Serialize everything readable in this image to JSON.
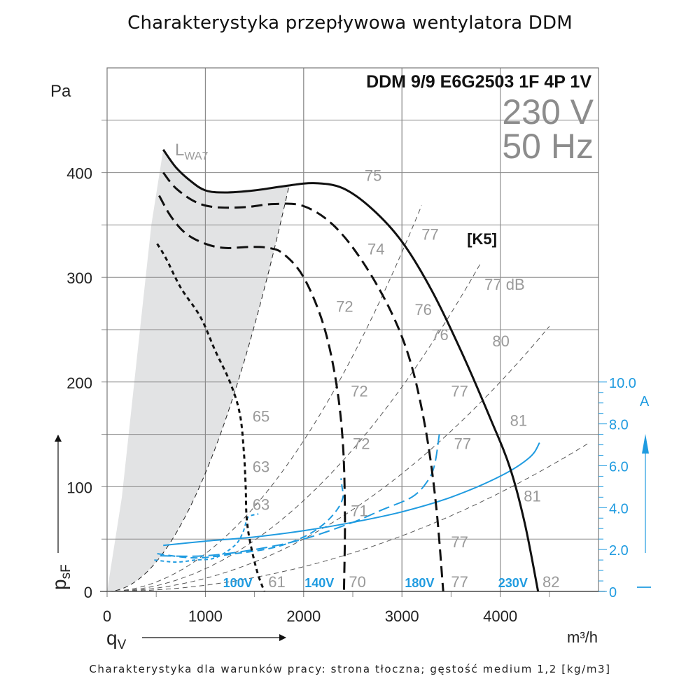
{
  "page": {
    "title": "Charakterystyka przepływowa wentylatora DDM",
    "footer": "Charakterystyka dla warunków pracy: strona tłoczna; gęstość medium 1,2 [kg/m3]"
  },
  "chart_data": {
    "type": "line",
    "title": "Charakterystyka przepływowa wentylatora DDM",
    "model": "DDM 9/9 E6G2503 1F 4P 1V",
    "voltage": "230 V",
    "frequency": "50 Hz",
    "curve_code": "[K5]",
    "lwa_label": "L",
    "lwa_sub": "WA7",
    "xlabel": "q",
    "xlabel_sub": "V",
    "xunit": "m³/h",
    "ylabel": "p",
    "ylabel_sub": "sF",
    "yunit": "Pa",
    "y2unit": "A",
    "xlim": [
      0,
      5000
    ],
    "ylim": [
      0,
      500
    ],
    "y2lim": [
      0,
      25
    ],
    "xticks": [
      0,
      1000,
      2000,
      3000,
      4000
    ],
    "xtick_labels": [
      "0",
      "1000",
      "2000",
      "3000",
      "4000"
    ],
    "yticks": [
      0,
      100,
      200,
      300,
      400
    ],
    "ytick_labels": [
      "0",
      "100",
      "200",
      "300",
      "400"
    ],
    "y2ticks": [
      0,
      2,
      4,
      6,
      8,
      10
    ],
    "y2tick_labels": [
      "0",
      "2.0",
      "4.0",
      "6.0",
      "8.0",
      "10.0"
    ],
    "grid": true,
    "colors": {
      "pressure": "#111111",
      "current": "#1f9be0",
      "shade": "#e2e3e4",
      "grid": "#8a8a8a",
      "db": "#9a9a9a"
    },
    "pressure_series": [
      {
        "name": "230V",
        "label": "230V",
        "style": "solid",
        "x": [
          571,
          700,
          850,
          1000,
          1200,
          1500,
          1800,
          2100,
          2400,
          2700,
          3000,
          3300,
          3600,
          3900,
          4100,
          4250,
          4385
        ],
        "y": [
          422,
          405,
          392,
          383,
          381,
          383,
          387,
          390,
          385,
          365,
          334,
          288,
          230,
          165,
          118,
          65,
          0
        ]
      },
      {
        "name": "180V",
        "label": "180V",
        "style": "dash",
        "x": [
          571,
          700,
          900,
          1100,
          1400,
          1700,
          2000,
          2300,
          2600,
          2900,
          3100,
          3250,
          3350,
          3420
        ],
        "y": [
          400,
          385,
          372,
          367,
          367,
          370,
          368,
          350,
          315,
          265,
          215,
          150,
          80,
          0
        ]
      },
      {
        "name": "140V",
        "label": "140V",
        "style": "dash",
        "x": [
          530,
          650,
          800,
          1000,
          1200,
          1450,
          1650,
          1800,
          2000,
          2200,
          2330,
          2400,
          2420,
          2410
        ],
        "y": [
          378,
          358,
          342,
          332,
          328,
          329,
          328,
          322,
          300,
          255,
          200,
          140,
          70,
          0
        ]
      },
      {
        "name": "100V",
        "label": "100V",
        "style": "dot",
        "x": [
          510,
          600,
          750,
          950,
          1100,
          1250,
          1350,
          1390,
          1410,
          1420,
          1460,
          1530,
          1600
        ],
        "y": [
          332,
          318,
          290,
          262,
          230,
          200,
          170,
          135,
          100,
          70,
          45,
          18,
          0
        ]
      }
    ],
    "current_series": [
      {
        "name": "230V current",
        "style": "solid",
        "x": [
          571,
          1000,
          1500,
          2000,
          2500,
          3000,
          3500,
          4000,
          4300,
          4400
        ],
        "y": [
          2.2,
          2.4,
          2.6,
          2.9,
          3.3,
          3.8,
          4.5,
          5.5,
          6.4,
          7.1
        ]
      },
      {
        "name": "180V current",
        "style": "longdash",
        "x": [
          540,
          1000,
          1500,
          2000,
          2500,
          2800,
          3100,
          3250,
          3330,
          3380
        ],
        "y": [
          1.7,
          1.7,
          2.0,
          2.5,
          3.3,
          3.9,
          4.5,
          5.2,
          6.0,
          7.5
        ]
      },
      {
        "name": "140V current",
        "style": "dash",
        "x": [
          510,
          900,
          1300,
          1700,
          2000,
          2200,
          2340,
          2400,
          2390,
          2380
        ],
        "y": [
          1.8,
          1.6,
          1.8,
          2.1,
          2.6,
          3.2,
          3.9,
          4.5,
          5.0,
          5.4
        ]
      },
      {
        "name": "100V current",
        "style": "dot",
        "x": [
          480,
          700,
          900,
          1100,
          1300,
          1380,
          1420,
          1450,
          1540
        ],
        "y": [
          1.5,
          1.4,
          1.5,
          1.6,
          2.2,
          2.8,
          3.4,
          3.6,
          3.7
        ]
      }
    ],
    "system_curves_k": [
      0.000113,
      3.6e-05,
      2.17e-05,
      1.25e-05,
      5.9e-06
    ],
    "system_curve_xmax": [
      1850,
      3200,
      3800,
      4500,
      4900
    ],
    "lwa_region_left": {
      "x": [
        0,
        150,
        300,
        450,
        571
      ],
      "y": [
        0,
        90,
        220,
        350,
        422
      ]
    },
    "db_labels": [
      {
        "text": "75",
        "x": 2620,
        "y": 392
      },
      {
        "text": "77",
        "x": 3200,
        "y": 336
      },
      {
        "text": "74",
        "x": 2650,
        "y": 322
      },
      {
        "text": "77 dB",
        "x": 3840,
        "y": 288
      },
      {
        "text": "72",
        "x": 2330,
        "y": 267
      },
      {
        "text": "76",
        "x": 3130,
        "y": 264
      },
      {
        "text": "76",
        "x": 3300,
        "y": 240
      },
      {
        "text": "80",
        "x": 3920,
        "y": 234
      },
      {
        "text": "72",
        "x": 2480,
        "y": 186
      },
      {
        "text": "77",
        "x": 3500,
        "y": 186
      },
      {
        "text": "65",
        "x": 1480,
        "y": 162
      },
      {
        "text": "81",
        "x": 4100,
        "y": 158
      },
      {
        "text": "72",
        "x": 2500,
        "y": 136
      },
      {
        "text": "77",
        "x": 3530,
        "y": 136
      },
      {
        "text": "63",
        "x": 1480,
        "y": 114
      },
      {
        "text": "81",
        "x": 4240,
        "y": 86
      },
      {
        "text": "63",
        "x": 1480,
        "y": 78
      },
      {
        "text": "71",
        "x": 2480,
        "y": 72
      },
      {
        "text": "77",
        "x": 3500,
        "y": 42
      },
      {
        "text": "61",
        "x": 1640,
        "y": 4
      },
      {
        "text": "70",
        "x": 2460,
        "y": 4
      },
      {
        "text": "77",
        "x": 3500,
        "y": 4
      },
      {
        "text": "82",
        "x": 4430,
        "y": 4
      }
    ],
    "voltage_labels": [
      {
        "text": "100V",
        "x": 1180,
        "y": 4
      },
      {
        "text": "140V",
        "x": 2010,
        "y": 4
      },
      {
        "text": "180V",
        "x": 3030,
        "y": 4
      },
      {
        "text": "230V",
        "x": 3980,
        "y": 4
      }
    ]
  }
}
